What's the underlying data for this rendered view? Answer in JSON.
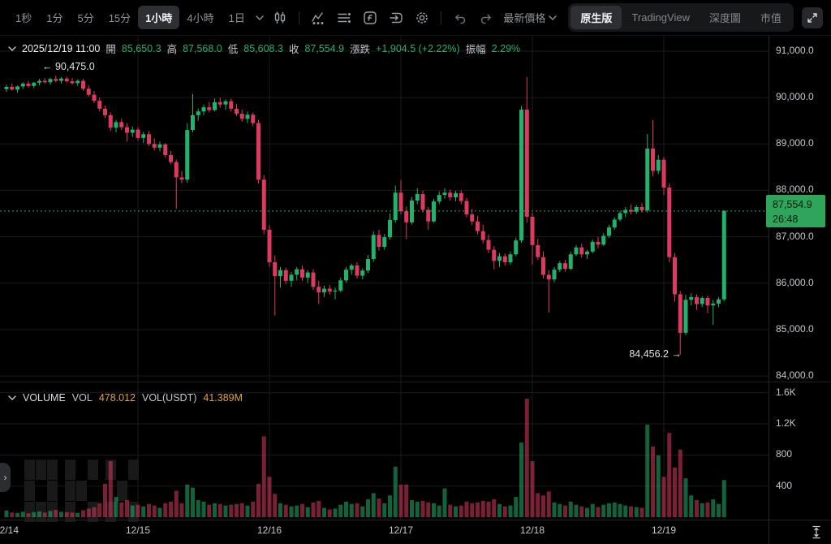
{
  "toolbar": {
    "timeframes": [
      "1秒",
      "1分",
      "5分",
      "15分",
      "1小時",
      "4小時",
      "1日"
    ],
    "active_timeframe": "1小時",
    "latest_price_label": "最新價格",
    "view_tabs": [
      "原生版",
      "TradingView",
      "深度圖",
      "市值"
    ],
    "active_view_tab": "原生版",
    "icons": [
      "candlestick-icon",
      "indicators-icon",
      "list-icon",
      "script-icon",
      "replay-icon",
      "settings-gear-icon",
      "undo-icon",
      "redo-icon",
      "fullscreen-icon"
    ]
  },
  "ohlc_bar": {
    "datetime": "2025/12/19 11:00",
    "open_label": "開",
    "open": "85,650.3",
    "high_label": "高",
    "high": "87,568.0",
    "low_label": "低",
    "low": "85,608.3",
    "close_label": "收",
    "close": "87,554.9",
    "change_label": "漲跌",
    "change": "+1,904.5 (+2.22%)",
    "amplitude_label": "振幅",
    "amplitude": "2.29%"
  },
  "volume_bar": {
    "title": "VOLUME",
    "vol_label": "VOL",
    "vol_value": "478.012",
    "vol_usdt_label": "VOL(USDT)",
    "vol_usdt_value": "41.389M"
  },
  "price_axis": {
    "labels": [
      "91,000.0",
      "90,000.0",
      "89,000.0",
      "88,000.0",
      "87,000.0",
      "86,000.0",
      "85,000.0",
      "84,000.0"
    ],
    "values": [
      91000,
      90000,
      89000,
      88000,
      87000,
      86000,
      85000,
      84000
    ]
  },
  "volume_axis": {
    "labels": [
      "1.6K",
      "1.2K",
      "800",
      "400"
    ],
    "values": [
      1600,
      1200,
      800,
      400
    ]
  },
  "time_axis": [
    "12/14",
    "12/15",
    "12/16",
    "12/17",
    "12/18",
    "12/19"
  ],
  "current_price": {
    "price": "87,554.9",
    "countdown": "26:48",
    "value": 87554.9
  },
  "annotations": {
    "high": {
      "arrow": "←",
      "text": "90,475.0",
      "value": 90475.0
    },
    "low": {
      "text": "84,456.2",
      "arrow": "→",
      "value": 84456.2
    }
  },
  "colors": {
    "up": "#21b26c",
    "down": "#de3a5f",
    "grid": "#1a1b1d",
    "axis_text": "#c3c7cd",
    "muted_text": "#8f9298",
    "orange": "#dfa13e",
    "badge_bg": "#2ea55b",
    "watermark": "#191919"
  },
  "chart_data": {
    "type": "candlestick+volume",
    "timeframe": "1小時",
    "start": "12/14 00:00",
    "price_axis_range": [
      84000,
      91000
    ],
    "volume_axis_ticks": [
      400,
      800,
      1200,
      1600
    ],
    "legend": "candles are [open, high, low, close, volume] hourly from 12/14 00:00 to 12/19 11:00",
    "candles": [
      [
        90180,
        90280,
        90120,
        90230,
        85
      ],
      [
        90230,
        90300,
        90150,
        90170,
        60
      ],
      [
        90170,
        90260,
        90100,
        90240,
        55
      ],
      [
        90240,
        90330,
        90190,
        90300,
        70
      ],
      [
        90300,
        90360,
        90210,
        90250,
        50
      ],
      [
        90250,
        90340,
        90200,
        90320,
        65
      ],
      [
        90320,
        90400,
        90260,
        90360,
        75
      ],
      [
        90360,
        90420,
        90300,
        90330,
        60
      ],
      [
        90330,
        90430,
        90280,
        90400,
        80
      ],
      [
        90400,
        90475,
        90330,
        90360,
        95
      ],
      [
        90360,
        90440,
        90300,
        90410,
        70
      ],
      [
        90410,
        90450,
        90320,
        90350,
        65
      ],
      [
        90350,
        90420,
        90280,
        90310,
        60
      ],
      [
        90310,
        90390,
        90250,
        90360,
        55
      ],
      [
        90360,
        90400,
        90150,
        90190,
        90
      ],
      [
        90190,
        90260,
        90020,
        90060,
        110
      ],
      [
        90060,
        90140,
        89880,
        89930,
        130
      ],
      [
        89930,
        90000,
        89700,
        89760,
        180
      ],
      [
        89760,
        89830,
        89560,
        89620,
        430
      ],
      [
        89620,
        89680,
        89280,
        89350,
        720
      ],
      [
        89350,
        89520,
        89250,
        89470,
        260
      ],
      [
        89470,
        89540,
        89300,
        89360,
        190
      ],
      [
        89360,
        89450,
        89050,
        89240,
        220
      ],
      [
        89240,
        89380,
        89150,
        89310,
        150
      ],
      [
        89310,
        89360,
        89080,
        89130,
        160
      ],
      [
        89130,
        89260,
        89020,
        89210,
        140
      ],
      [
        89210,
        89280,
        88950,
        89000,
        170
      ],
      [
        89000,
        89120,
        88860,
        88920,
        150
      ],
      [
        88920,
        89050,
        88840,
        88990,
        120
      ],
      [
        88990,
        89020,
        88700,
        88760,
        180
      ],
      [
        88760,
        88850,
        88560,
        88610,
        200
      ],
      [
        88610,
        88660,
        87600,
        88280,
        340
      ],
      [
        88280,
        88420,
        88150,
        88230,
        180
      ],
      [
        88230,
        89450,
        88160,
        89300,
        420
      ],
      [
        89300,
        90080,
        89250,
        89620,
        380
      ],
      [
        89620,
        89760,
        89500,
        89700,
        220
      ],
      [
        89700,
        89850,
        89620,
        89790,
        200
      ],
      [
        89790,
        89900,
        89680,
        89730,
        160
      ],
      [
        89730,
        89980,
        89700,
        89900,
        180
      ],
      [
        89900,
        90000,
        89780,
        89850,
        170
      ],
      [
        89850,
        89960,
        89740,
        89920,
        150
      ],
      [
        89920,
        89980,
        89700,
        89760,
        160
      ],
      [
        89760,
        89870,
        89600,
        89650,
        170
      ],
      [
        89650,
        89740,
        89480,
        89540,
        180
      ],
      [
        89540,
        89700,
        89450,
        89630,
        150
      ],
      [
        89630,
        89680,
        89380,
        89450,
        200
      ],
      [
        89450,
        89520,
        88150,
        88230,
        430
      ],
      [
        88230,
        88330,
        87050,
        87150,
        1040
      ],
      [
        87150,
        87250,
        86350,
        86450,
        520
      ],
      [
        86450,
        86600,
        85300,
        86150,
        300
      ],
      [
        86150,
        86350,
        85900,
        86280,
        180
      ],
      [
        86280,
        86330,
        85980,
        86050,
        160
      ],
      [
        86050,
        86240,
        85920,
        86180,
        140
      ],
      [
        86180,
        86350,
        86060,
        86300,
        150
      ],
      [
        86300,
        86380,
        86050,
        86120,
        170
      ],
      [
        86120,
        86280,
        86000,
        86230,
        130
      ],
      [
        86230,
        86300,
        85850,
        85920,
        190
      ],
      [
        85920,
        86050,
        85550,
        85800,
        210
      ],
      [
        85800,
        85950,
        85700,
        85880,
        120
      ],
      [
        85880,
        85960,
        85750,
        85820,
        100
      ],
      [
        85820,
        85900,
        85650,
        85840,
        110
      ],
      [
        85840,
        86120,
        85800,
        86060,
        160
      ],
      [
        86060,
        86350,
        86010,
        86290,
        200
      ],
      [
        86290,
        86420,
        86180,
        86380,
        170
      ],
      [
        86380,
        86450,
        86100,
        86160,
        180
      ],
      [
        86160,
        86320,
        86080,
        86270,
        140
      ],
      [
        86270,
        86600,
        86220,
        86520,
        230
      ],
      [
        86520,
        87120,
        86460,
        87040,
        310
      ],
      [
        87040,
        87150,
        86700,
        86780,
        240
      ],
      [
        86780,
        87060,
        86720,
        86990,
        180
      ],
      [
        86990,
        87500,
        86940,
        87360,
        280
      ],
      [
        87360,
        88100,
        87300,
        87950,
        650
      ],
      [
        87950,
        88220,
        87480,
        87550,
        420
      ],
      [
        87550,
        87650,
        86950,
        87310,
        420
      ],
      [
        87310,
        87850,
        87260,
        87780,
        220
      ],
      [
        87780,
        88050,
        87700,
        87920,
        200
      ],
      [
        87920,
        87990,
        87520,
        87580,
        210
      ],
      [
        87580,
        87640,
        87150,
        87330,
        190
      ],
      [
        87330,
        87820,
        87300,
        87760,
        180
      ],
      [
        87760,
        87980,
        87700,
        87900,
        150
      ],
      [
        87900,
        88050,
        87820,
        87950,
        370
      ],
      [
        87950,
        88020,
        87780,
        87850,
        160
      ],
      [
        87850,
        87990,
        87760,
        87940,
        140
      ],
      [
        87940,
        88000,
        87700,
        87770,
        150
      ],
      [
        87770,
        87840,
        87420,
        87480,
        200
      ],
      [
        87480,
        87600,
        87250,
        87330,
        180
      ],
      [
        87330,
        87450,
        87050,
        87120,
        190
      ],
      [
        87120,
        87260,
        86850,
        86930,
        210
      ],
      [
        86930,
        87050,
        86650,
        86720,
        200
      ],
      [
        86720,
        86800,
        86300,
        86480,
        230
      ],
      [
        86480,
        86650,
        86350,
        86580,
        170
      ],
      [
        86580,
        86640,
        86380,
        86450,
        140
      ],
      [
        86450,
        86680,
        86400,
        86620,
        150
      ],
      [
        86620,
        86980,
        86580,
        86920,
        260
      ],
      [
        86920,
        89820,
        86870,
        89740,
        960
      ],
      [
        89740,
        90440,
        87300,
        87430,
        1525
      ],
      [
        87430,
        87520,
        86400,
        86820,
        720
      ],
      [
        86820,
        86950,
        86500,
        86560,
        310
      ],
      [
        86560,
        86680,
        86100,
        86180,
        280
      ],
      [
        86180,
        86280,
        85365,
        86080,
        330
      ],
      [
        86080,
        86350,
        86020,
        86290,
        190
      ],
      [
        86290,
        86480,
        86240,
        86430,
        170
      ],
      [
        86430,
        86500,
        86250,
        86310,
        150
      ],
      [
        86310,
        86680,
        86280,
        86620,
        200
      ],
      [
        86620,
        86820,
        86580,
        86770,
        160
      ],
      [
        86770,
        86850,
        86550,
        86620,
        140
      ],
      [
        86620,
        86720,
        86520,
        86680,
        120
      ],
      [
        86680,
        86940,
        86640,
        86890,
        170
      ],
      [
        86890,
        87000,
        86750,
        86830,
        130
      ],
      [
        86830,
        87080,
        86800,
        87020,
        160
      ],
      [
        87020,
        87260,
        86980,
        87200,
        180
      ],
      [
        87200,
        87420,
        87150,
        87370,
        190
      ],
      [
        87370,
        87560,
        87330,
        87510,
        170
      ],
      [
        87510,
        87640,
        87420,
        87580,
        150
      ],
      [
        87580,
        87700,
        87480,
        87540,
        140
      ],
      [
        87540,
        87680,
        87490,
        87640,
        130
      ],
      [
        87640,
        87720,
        87520,
        87570,
        120
      ],
      [
        87570,
        89215,
        87520,
        88900,
        1190
      ],
      [
        88900,
        89512,
        88300,
        88420,
        910
      ],
      [
        88420,
        88760,
        88350,
        88660,
        795
      ],
      [
        88660,
        88720,
        87900,
        88060,
        520
      ],
      [
        88060,
        88150,
        86450,
        86560,
        1085
      ],
      [
        86560,
        86650,
        85600,
        85760,
        640
      ],
      [
        85760,
        85830,
        84456.2,
        84930,
        870
      ],
      [
        84930,
        85750,
        84880,
        85640,
        500
      ],
      [
        85640,
        85780,
        85520,
        85700,
        280
      ],
      [
        85700,
        85760,
        85420,
        85550,
        220
      ],
      [
        85550,
        85720,
        85480,
        85680,
        180
      ],
      [
        85680,
        85730,
        85350,
        85520,
        190
      ],
      [
        85520,
        85640,
        85100,
        85560,
        230
      ],
      [
        85560,
        85700,
        85480,
        85650,
        170
      ],
      [
        85650.3,
        87568.0,
        85608.3,
        87554.9,
        478
      ]
    ]
  }
}
